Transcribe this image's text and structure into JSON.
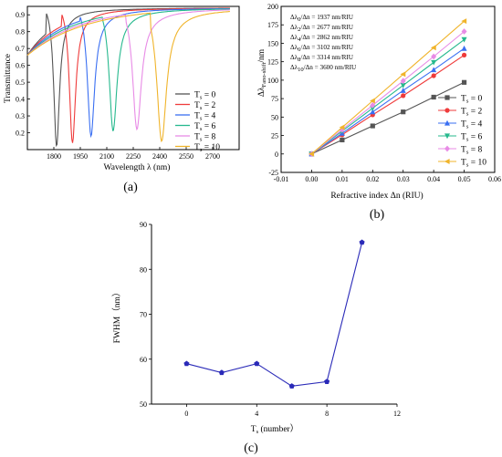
{
  "chart_data": [
    {
      "type": "line",
      "panel_label": "(a)",
      "xlabel": "Wavelength λ (nm)",
      "ylabel": "Transmittance",
      "xlim": [
        1650,
        2850
      ],
      "ylim": [
        0.1,
        0.95
      ],
      "xticks": [
        "1800",
        "1950",
        "2100",
        "2250",
        "2400",
        "2550",
        "2700"
      ],
      "yticks": [
        "0.2",
        "0.3",
        "0.4",
        "0.5",
        "0.6",
        "0.7",
        "0.8",
        "0.9"
      ],
      "legend_position": "bottom-right",
      "series": [
        {
          "name": "T",
          "sub": "s",
          "suffix": " = 0",
          "color": "#555555",
          "dip": 1815,
          "depth": 0.12,
          "width": 20
        },
        {
          "name": "T",
          "sub": "s",
          "suffix": " = 2",
          "color": "#ef3b3b",
          "dip": 1905,
          "depth": 0.14,
          "width": 22
        },
        {
          "name": "T",
          "sub": "s",
          "suffix": " = 4",
          "color": "#3a6ff2",
          "dip": 2010,
          "depth": 0.18,
          "width": 25
        },
        {
          "name": "T",
          "sub": "s",
          "suffix": " = 6",
          "color": "#27b98e",
          "dip": 2135,
          "depth": 0.21,
          "width": 27
        },
        {
          "name": "T",
          "sub": "s",
          "suffix": " = 8",
          "color": "#e88be6",
          "dip": 2270,
          "depth": 0.22,
          "width": 30
        },
        {
          "name": "T",
          "sub": "s",
          "suffix": " = 10",
          "color": "#f0b42b",
          "dip": 2410,
          "depth": 0.15,
          "width": 33
        }
      ]
    },
    {
      "type": "line",
      "panel_label": "(b)",
      "xlabel": "Refractive index Δn (RIU)",
      "ylabel": "Δλ",
      "ylabel_sub": "Fano-shift",
      "ylabel_suffix": "/nm",
      "xlim": [
        -0.01,
        0.06
      ],
      "ylim": [
        -25,
        200
      ],
      "xticks": [
        "-0.01",
        "0.00",
        "0.01",
        "0.02",
        "0.03",
        "0.04",
        "0.05",
        "0.06"
      ],
      "yticks": [
        "-25",
        "0",
        "25",
        "50",
        "75",
        "100",
        "125",
        "150",
        "175",
        "200"
      ],
      "x": [
        0.0,
        0.01,
        0.02,
        0.03,
        0.04,
        0.05
      ],
      "annotations": [
        {
          "pre": "Δλ",
          "sub": "0",
          "post": "/Δn = 1937 nm/RIU"
        },
        {
          "pre": "Δλ",
          "sub": "2",
          "post": "/Δn = 2677 nm/RIU"
        },
        {
          "pre": "Δλ",
          "sub": "4",
          "post": "/Δn = 2862 nm/RIU"
        },
        {
          "pre": "Δλ",
          "sub": "6",
          "post": "/Δn = 3102 nm/RIU"
        },
        {
          "pre": "Δλ",
          "sub": "8",
          "post": "/Δn = 3314 nm/RIU"
        },
        {
          "pre": "Δλ",
          "sub": "10",
          "post": "/Δn = 3600 nm/RIU"
        }
      ],
      "legend_position": "right",
      "series": [
        {
          "name": "T",
          "sub": "s",
          "suffix": " = 0",
          "color": "#555555",
          "marker": "square",
          "values": [
            0,
            19,
            38,
            57,
            77,
            97
          ]
        },
        {
          "name": "T",
          "sub": "s",
          "suffix": " = 2",
          "color": "#ef3b3b",
          "marker": "circle",
          "values": [
            0,
            26,
            53,
            79,
            106,
            134
          ]
        },
        {
          "name": "T",
          "sub": "s",
          "suffix": " = 4",
          "color": "#3a6ff2",
          "marker": "triangle-up",
          "values": [
            0,
            28,
            57,
            86,
            114,
            143
          ]
        },
        {
          "name": "T",
          "sub": "s",
          "suffix": " = 6",
          "color": "#27b98e",
          "marker": "triangle-down",
          "values": [
            0,
            31,
            62,
            93,
            124,
            155
          ]
        },
        {
          "name": "T",
          "sub": "s",
          "suffix": " = 8",
          "color": "#e88be6",
          "marker": "diamond",
          "values": [
            0,
            33,
            66,
            99,
            132,
            166
          ]
        },
        {
          "name": "T",
          "sub": "s",
          "suffix": " = 10",
          "color": "#f0b42b",
          "marker": "triangle-left",
          "values": [
            0,
            36,
            72,
            108,
            144,
            180
          ]
        }
      ]
    },
    {
      "type": "line",
      "panel_label": "(c)",
      "xlabel": "T",
      "xlabel_sub": "s",
      "xlabel_suffix": " (number）",
      "ylabel": "FWHM（nm）",
      "xlim": [
        -2,
        12
      ],
      "ylim": [
        50,
        90
      ],
      "xticks": [
        "0",
        "4",
        "8",
        "12"
      ],
      "yticks": [
        "50",
        "60",
        "70",
        "80",
        "90"
      ],
      "color": "#2a2ab8",
      "x": [
        0,
        2,
        4,
        6,
        8,
        10
      ],
      "values": [
        59,
        57,
        59,
        54,
        55,
        86
      ]
    }
  ]
}
